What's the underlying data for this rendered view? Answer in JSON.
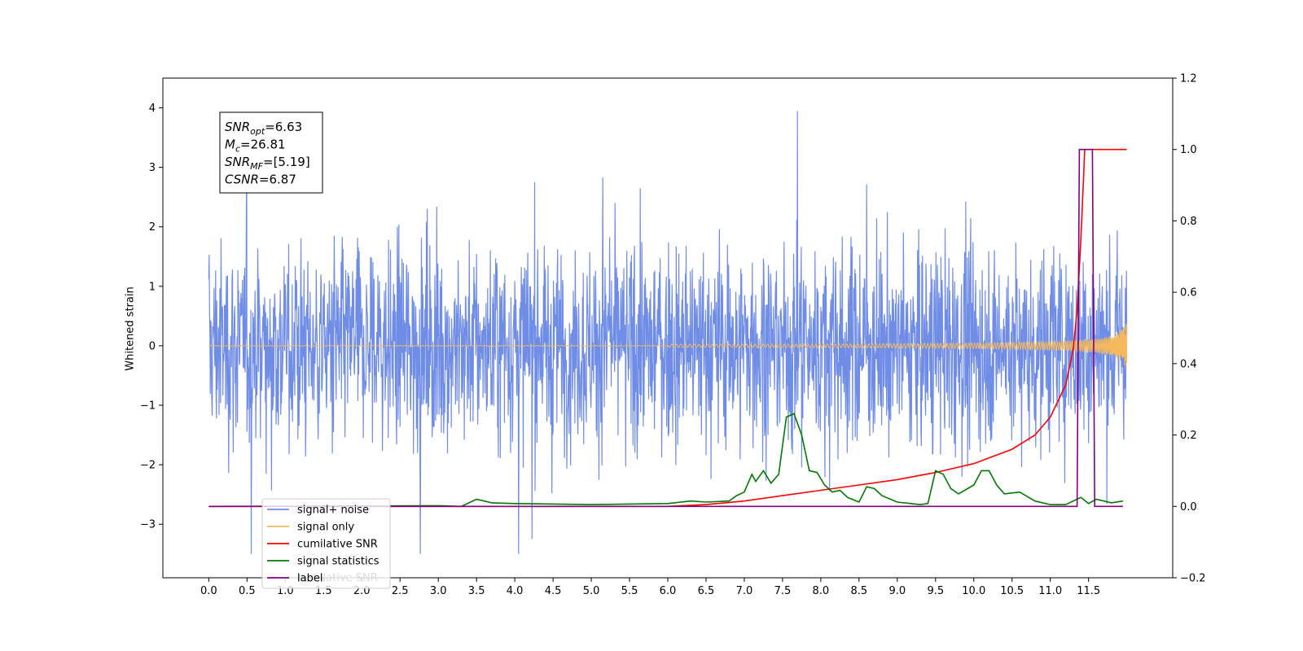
{
  "chart_data": {
    "type": "line",
    "title": "",
    "xlabel": "",
    "ylabel": "Whitened strain",
    "xlim": [
      -0.6,
      12.6
    ],
    "ylim": [
      -3.9,
      4.5
    ],
    "y2lim": [
      -0.2,
      1.2
    ],
    "grid": false,
    "legend_placement": "lower-left",
    "x_ticks": [
      "0.0",
      "0.5",
      "1.0",
      "1.5",
      "2.0",
      "2.5",
      "3.0",
      "3.5",
      "4.0",
      "4.5",
      "5.0",
      "5.5",
      "6.0",
      "6.5",
      "7.0",
      "7.5",
      "8.0",
      "8.5",
      "9.0",
      "9.5",
      "10.0",
      "10.5",
      "11.0",
      "11.5"
    ],
    "y_ticks": [
      "−3",
      "−2",
      "−1",
      "0",
      "1",
      "2",
      "3",
      "4"
    ],
    "y2_ticks": [
      "−0.2",
      "0.0",
      "0.2",
      "0.4",
      "0.6",
      "0.8",
      "1.0",
      "1.2"
    ],
    "stats": [
      {
        "symbol": "SNR",
        "sub": "opt",
        "value": "=6.63"
      },
      {
        "symbol": "M",
        "sub": "c",
        "value": "=26.81"
      },
      {
        "symbol": "SNR",
        "sub": "MF",
        "value": "=[5.19]"
      },
      {
        "symbol": "CSNR",
        "sub": "",
        "value": "=6.87"
      }
    ],
    "series": [
      {
        "name": "signal+ noise",
        "color": "#6f8de6",
        "axis": "left",
        "kind": "noise",
        "x_range": [
          0.0,
          12.0
        ],
        "envelope": [
          -3.5,
          4.1
        ]
      },
      {
        "name": "signal only",
        "color": "#f5b85c",
        "axis": "left",
        "kind": "chirp",
        "x_range": [
          0.0,
          12.0
        ],
        "amplitude_end": 0.45
      },
      {
        "name": "cumilative SNR",
        "color": "#ff0000",
        "axis": "right",
        "x": [
          0.0,
          6.0,
          6.5,
          7.0,
          7.5,
          8.0,
          8.5,
          9.0,
          9.5,
          10.0,
          10.5,
          10.8,
          11.0,
          11.2,
          11.3,
          11.35,
          11.4,
          11.45,
          11.5,
          12.0
        ],
        "values": [
          0.0,
          0.0,
          0.005,
          0.015,
          0.03,
          0.045,
          0.06,
          0.075,
          0.095,
          0.12,
          0.16,
          0.2,
          0.25,
          0.34,
          0.44,
          0.55,
          0.75,
          1.0,
          1.0,
          1.0
        ]
      },
      {
        "name": "signal statistics",
        "color": "#007a00",
        "axis": "right",
        "x": [
          0.0,
          3.0,
          3.3,
          3.5,
          3.7,
          4.0,
          5.0,
          6.0,
          6.3,
          6.5,
          6.8,
          6.9,
          7.0,
          7.1,
          7.15,
          7.25,
          7.35,
          7.45,
          7.55,
          7.65,
          7.75,
          7.85,
          7.95,
          8.05,
          8.15,
          8.25,
          8.35,
          8.5,
          8.6,
          8.7,
          8.8,
          9.0,
          9.3,
          9.4,
          9.5,
          9.6,
          9.7,
          9.8,
          10.0,
          10.1,
          10.2,
          10.3,
          10.4,
          10.6,
          10.8,
          11.0,
          11.2,
          11.4,
          11.5,
          11.6,
          11.8,
          11.95
        ],
        "values": [
          0.0,
          0.002,
          0.0,
          0.02,
          0.01,
          0.008,
          0.005,
          0.008,
          0.015,
          0.012,
          0.015,
          0.03,
          0.04,
          0.09,
          0.07,
          0.1,
          0.065,
          0.09,
          0.25,
          0.26,
          0.2,
          0.1,
          0.095,
          0.06,
          0.04,
          0.045,
          0.025,
          0.012,
          0.055,
          0.05,
          0.03,
          0.012,
          0.005,
          0.008,
          0.1,
          0.09,
          0.05,
          0.035,
          0.06,
          0.1,
          0.1,
          0.06,
          0.035,
          0.04,
          0.015,
          0.005,
          0.005,
          0.025,
          0.008,
          0.02,
          0.01,
          0.015
        ]
      },
      {
        "name": "label",
        "color": "#800080",
        "axis": "right",
        "x": [
          0.0,
          11.35,
          11.38,
          11.55,
          11.58,
          11.95
        ],
        "values": [
          0.0,
          0.0,
          1.0,
          1.0,
          0.0,
          0.0
        ]
      }
    ],
    "legend_overlap_text": "cumilative SNR"
  }
}
